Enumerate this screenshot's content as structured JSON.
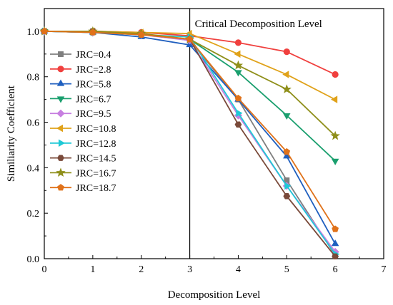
{
  "chart_data": {
    "type": "line",
    "xlabel": "Decomposition Level",
    "ylabel": "Similiarity Coefficient",
    "xlim": [
      0,
      7
    ],
    "ylim": [
      0.0,
      1.1
    ],
    "xticks": [
      0,
      1,
      2,
      3,
      4,
      5,
      6,
      7
    ],
    "yticks": [
      0.0,
      0.2,
      0.4,
      0.6,
      0.8,
      1.0
    ],
    "x": [
      0,
      1,
      2,
      3,
      4,
      5,
      6
    ],
    "grid": false,
    "legend_position": "left",
    "annotation": {
      "text": "Critical Decomposition Level",
      "x": 3
    },
    "series": [
      {
        "name": "JRC=0.4",
        "color": "#7f7f7f",
        "marker": "square",
        "values": [
          1.0,
          1.0,
          0.99,
          0.96,
          0.7,
          0.345,
          0.015
        ]
      },
      {
        "name": "JRC=2.8",
        "color": "#f0403e",
        "marker": "circle",
        "values": [
          1.0,
          1.0,
          0.995,
          0.98,
          0.95,
          0.91,
          0.81
        ]
      },
      {
        "name": "JRC=5.8",
        "color": "#1f5fbf",
        "marker": "triangle-up",
        "values": [
          1.0,
          0.995,
          0.975,
          0.94,
          0.7,
          0.45,
          0.065
        ]
      },
      {
        "name": "JRC=6.7",
        "color": "#1a9f6e",
        "marker": "triangle-down",
        "values": [
          1.0,
          0.995,
          0.985,
          0.965,
          0.82,
          0.63,
          0.43
        ]
      },
      {
        "name": "JRC=9.5",
        "color": "#c77fe0",
        "marker": "diamond",
        "values": [
          1.0,
          0.995,
          0.985,
          0.96,
          0.63,
          0.32,
          0.03
        ]
      },
      {
        "name": "JRC=10.8",
        "color": "#e0a21a",
        "marker": "triangle-left",
        "values": [
          1.0,
          1.0,
          0.995,
          0.99,
          0.9,
          0.81,
          0.7
        ]
      },
      {
        "name": "JRC=12.8",
        "color": "#1ec9d6",
        "marker": "triangle-right",
        "values": [
          1.0,
          0.995,
          0.985,
          0.975,
          0.64,
          0.32,
          0.02
        ]
      },
      {
        "name": "JRC=14.5",
        "color": "#7a4a3a",
        "marker": "hexagon",
        "values": [
          1.0,
          1.0,
          0.985,
          0.965,
          0.59,
          0.275,
          0.01
        ]
      },
      {
        "name": "JRC=16.7",
        "color": "#8f8f1a",
        "marker": "star",
        "values": [
          1.0,
          1.0,
          0.99,
          0.965,
          0.85,
          0.745,
          0.54
        ]
      },
      {
        "name": "JRC=18.7",
        "color": "#e0721a",
        "marker": "pentagon",
        "values": [
          1.0,
          0.995,
          0.985,
          0.965,
          0.705,
          0.47,
          0.13
        ]
      }
    ]
  }
}
